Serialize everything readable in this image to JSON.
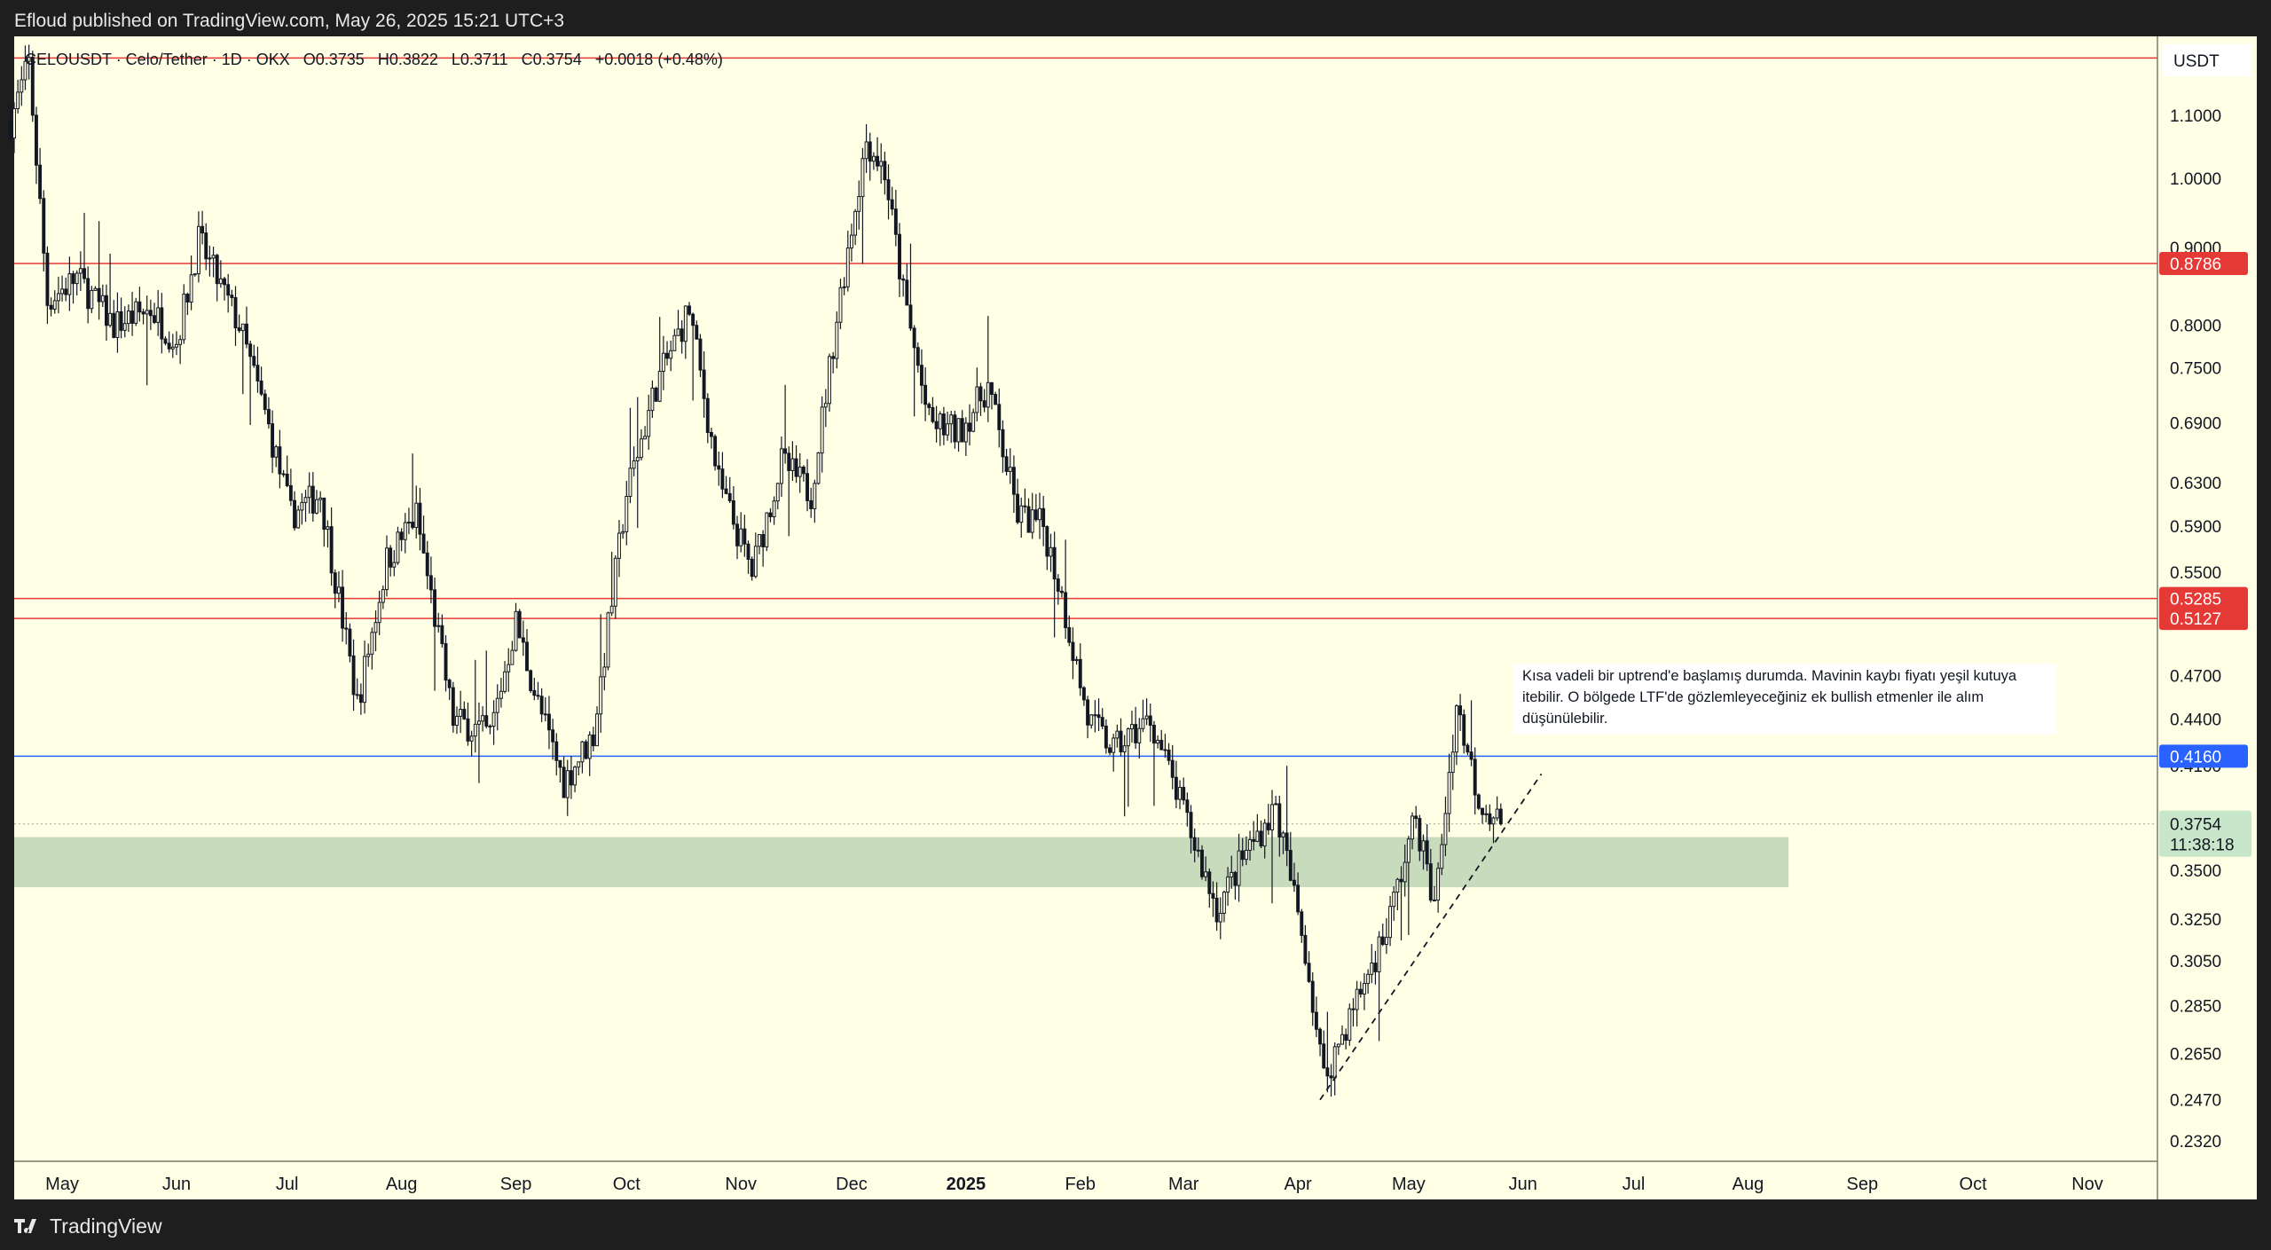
{
  "header": {
    "published_text": "Efloud published on TradingView.com, May 26, 2025 15:21 UTC+3"
  },
  "footer": {
    "brand": "TradingView",
    "logo_icon": "tradingview-logo-icon"
  },
  "legend": {
    "symbol_text": "CELOUSDT · Celo/Tether · 1D · OKX",
    "open": "O0.3735",
    "high": "H0.3822",
    "low": "L0.3711",
    "close": "C0.3754",
    "change": "+0.0018 (+0.48%)"
  },
  "price_axis": {
    "currency": "USDT",
    "ticks": [
      "1.1000",
      "1.0000",
      "0.9000",
      "0.8000",
      "0.7500",
      "0.6900",
      "0.6300",
      "0.5900",
      "0.5500",
      "0.4700",
      "0.4400",
      "0.4100",
      "0.3500",
      "0.3250",
      "0.3050",
      "0.2850",
      "0.2650",
      "0.2470",
      "0.2320"
    ],
    "last_price": "0.3754",
    "countdown": "11:38:18"
  },
  "time_axis": {
    "labels": [
      "May",
      "Jun",
      "Jul",
      "Aug",
      "Sep",
      "Oct",
      "Nov",
      "Dec",
      "2025",
      "Feb",
      "Mar",
      "Apr",
      "May",
      "Jun",
      "Jul",
      "Aug",
      "Sep",
      "Oct",
      "Nov"
    ]
  },
  "annotation": {
    "text": "Kısa vadeli bir uptrend'e başlamış durumda. Mavinin kaybı fiyatı yeşil kutuya itebilir. O bölgede LTF'de gözlemleyeceğiniz ek bullish etmenler ile alım düşünülebilir."
  },
  "colors": {
    "background": "#ffffe6",
    "red_level": "#e53935",
    "blue_level": "#2962ff",
    "green_zone": "#c8dbbc",
    "candle": "#131722"
  },
  "chart_data": {
    "type": "candlestick",
    "symbol": "CELOUSDT",
    "timeframe": "1D",
    "scale": "log",
    "ylim": [
      0.225,
      1.24
    ],
    "xlim": [
      "2024-04-18",
      "2025-11-20"
    ],
    "horizontal_levels": [
      {
        "price": 1.2,
        "color": "#e53935"
      },
      {
        "price": 0.8786,
        "color": "#e53935",
        "label": "0.8786"
      },
      {
        "price": 0.5285,
        "color": "#e53935",
        "label": "0.5285"
      },
      {
        "price": 0.5127,
        "color": "#e53935",
        "label": "0.5127"
      },
      {
        "price": 0.416,
        "color": "#2962ff",
        "label": "0.4160"
      }
    ],
    "zone": {
      "from": 0.341,
      "to": 0.368,
      "x_end": "2025-08-12",
      "color": "#c8dbbc"
    },
    "trendline": [
      [
        "2025-04-07",
        0.247
      ],
      [
        "2025-06-06",
        0.405
      ]
    ],
    "price_path": [
      [
        "2024-04-17",
        1.09
      ],
      [
        "2024-04-22",
        1.19
      ],
      [
        "2024-04-27",
        0.83
      ],
      [
        "2024-05-05",
        0.86
      ],
      [
        "2024-05-15",
        0.8
      ],
      [
        "2024-05-25",
        0.82
      ],
      [
        "2024-06-01",
        0.78
      ],
      [
        "2024-06-07",
        0.91
      ],
      [
        "2024-06-18",
        0.8
      ],
      [
        "2024-06-25",
        0.7
      ],
      [
        "2024-07-02",
        0.6
      ],
      [
        "2024-07-10",
        0.62
      ],
      [
        "2024-07-20",
        0.45
      ],
      [
        "2024-07-28",
        0.56
      ],
      [
        "2024-08-05",
        0.6
      ],
      [
        "2024-08-15",
        0.44
      ],
      [
        "2024-08-25",
        0.43
      ],
      [
        "2024-09-01",
        0.51
      ],
      [
        "2024-09-07",
        0.45
      ],
      [
        "2024-09-14",
        0.4
      ],
      [
        "2024-09-22",
        0.43
      ],
      [
        "2024-10-01",
        0.62
      ],
      [
        "2024-10-09",
        0.73
      ],
      [
        "2024-10-18",
        0.82
      ],
      [
        "2024-10-26",
        0.63
      ],
      [
        "2024-11-04",
        0.55
      ],
      [
        "2024-11-12",
        0.65
      ],
      [
        "2024-11-20",
        0.62
      ],
      [
        "2024-11-28",
        0.84
      ],
      [
        "2024-12-05",
        1.06
      ],
      [
        "2024-12-10",
        1.01
      ],
      [
        "2024-12-15",
        0.84
      ],
      [
        "2024-12-22",
        0.69
      ],
      [
        "2024-12-30",
        0.68
      ],
      [
        "2025-01-07",
        0.73
      ],
      [
        "2025-01-15",
        0.6
      ],
      [
        "2025-01-22",
        0.59
      ],
      [
        "2025-01-27",
        0.53
      ],
      [
        "2025-02-03",
        0.44
      ],
      [
        "2025-02-10",
        0.42
      ],
      [
        "2025-02-20",
        0.44
      ],
      [
        "2025-03-03",
        0.37
      ],
      [
        "2025-03-10",
        0.33
      ],
      [
        "2025-03-18",
        0.36
      ],
      [
        "2025-03-26",
        0.385
      ],
      [
        "2025-04-03",
        0.31
      ],
      [
        "2025-04-08",
        0.255
      ],
      [
        "2025-04-15",
        0.28
      ],
      [
        "2025-04-25",
        0.32
      ],
      [
        "2025-05-03",
        0.38
      ],
      [
        "2025-05-08",
        0.33
      ],
      [
        "2025-05-14",
        0.45
      ],
      [
        "2025-05-20",
        0.39
      ],
      [
        "2025-05-26",
        0.3754
      ]
    ]
  }
}
